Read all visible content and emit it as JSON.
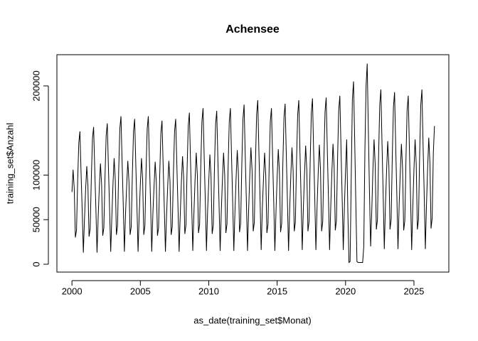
{
  "chart_data": {
    "type": "line",
    "title": "Achensee",
    "x_label": "as_date(training_set$Monat)",
    "y_label": "training_set$Anzahl",
    "color": "#000000",
    "xlim": [
      1998.9,
      2027.55
    ],
    "ylim": [
      -8800,
      235000
    ],
    "xticks": [
      2000,
      2005,
      2010,
      2015,
      2020,
      2025
    ],
    "yticks": [
      0,
      50000,
      100000,
      200000
    ],
    "x": [
      2000,
      2000.083,
      2000.167,
      2000.25,
      2000.333,
      2000.417,
      2000.5,
      2000.583,
      2000.667,
      2000.75,
      2000.833,
      2000.917,
      2001,
      2001.083,
      2001.167,
      2001.25,
      2001.333,
      2001.417,
      2001.5,
      2001.583,
      2001.667,
      2001.75,
      2001.833,
      2001.917,
      2002,
      2002.083,
      2002.167,
      2002.25,
      2002.333,
      2002.417,
      2002.5,
      2002.583,
      2002.667,
      2002.75,
      2002.833,
      2002.917,
      2003,
      2003.083,
      2003.167,
      2003.25,
      2003.333,
      2003.417,
      2003.5,
      2003.583,
      2003.667,
      2003.75,
      2003.833,
      2003.917,
      2004,
      2004.083,
      2004.167,
      2004.25,
      2004.333,
      2004.417,
      2004.5,
      2004.583,
      2004.667,
      2004.75,
      2004.833,
      2004.917,
      2005,
      2005.083,
      2005.167,
      2005.25,
      2005.333,
      2005.417,
      2005.5,
      2005.583,
      2005.667,
      2005.75,
      2005.833,
      2005.917,
      2006,
      2006.083,
      2006.167,
      2006.25,
      2006.333,
      2006.417,
      2006.5,
      2006.583,
      2006.667,
      2006.75,
      2006.833,
      2006.917,
      2007,
      2007.083,
      2007.167,
      2007.25,
      2007.333,
      2007.417,
      2007.5,
      2007.583,
      2007.667,
      2007.75,
      2007.833,
      2007.917,
      2008,
      2008.083,
      2008.167,
      2008.25,
      2008.333,
      2008.417,
      2008.5,
      2008.583,
      2008.667,
      2008.75,
      2008.833,
      2008.917,
      2009,
      2009.083,
      2009.167,
      2009.25,
      2009.333,
      2009.417,
      2009.5,
      2009.583,
      2009.667,
      2009.75,
      2009.833,
      2009.917,
      2010,
      2010.083,
      2010.167,
      2010.25,
      2010.333,
      2010.417,
      2010.5,
      2010.583,
      2010.667,
      2010.75,
      2010.833,
      2010.917,
      2011,
      2011.083,
      2011.167,
      2011.25,
      2011.333,
      2011.417,
      2011.5,
      2011.583,
      2011.667,
      2011.75,
      2011.833,
      2011.917,
      2012,
      2012.083,
      2012.167,
      2012.25,
      2012.333,
      2012.417,
      2012.5,
      2012.583,
      2012.667,
      2012.75,
      2012.833,
      2012.917,
      2013,
      2013.083,
      2013.167,
      2013.25,
      2013.333,
      2013.417,
      2013.5,
      2013.583,
      2013.667,
      2013.75,
      2013.833,
      2013.917,
      2014,
      2014.083,
      2014.167,
      2014.25,
      2014.333,
      2014.417,
      2014.5,
      2014.583,
      2014.667,
      2014.75,
      2014.833,
      2014.917,
      2015,
      2015.083,
      2015.167,
      2015.25,
      2015.333,
      2015.417,
      2015.5,
      2015.583,
      2015.667,
      2015.75,
      2015.833,
      2015.917,
      2016,
      2016.083,
      2016.167,
      2016.25,
      2016.333,
      2016.417,
      2016.5,
      2016.583,
      2016.667,
      2016.75,
      2016.833,
      2016.917,
      2017,
      2017.083,
      2017.167,
      2017.25,
      2017.333,
      2017.417,
      2017.5,
      2017.583,
      2017.667,
      2017.75,
      2017.833,
      2017.917,
      2018,
      2018.083,
      2018.167,
      2018.25,
      2018.333,
      2018.417,
      2018.5,
      2018.583,
      2018.667,
      2018.75,
      2018.833,
      2018.917,
      2019,
      2019.083,
      2019.167,
      2019.25,
      2019.333,
      2019.417,
      2019.5,
      2019.583,
      2019.667,
      2019.75,
      2019.833,
      2019.917,
      2020,
      2020.083,
      2020.167,
      2020.25,
      2020.333,
      2020.417,
      2020.5,
      2020.583,
      2020.667,
      2020.75,
      2020.833,
      2020.917,
      2021,
      2021.083,
      2021.167,
      2021.25,
      2021.333,
      2021.417,
      2021.5,
      2021.583,
      2021.667,
      2021.75,
      2021.833,
      2021.917,
      2022,
      2022.083,
      2022.167,
      2022.25,
      2022.333,
      2022.417,
      2022.5,
      2022.583,
      2022.667,
      2022.75,
      2022.833,
      2022.917,
      2023,
      2023.083,
      2023.167,
      2023.25,
      2023.333,
      2023.417,
      2023.5,
      2023.583,
      2023.667,
      2023.75,
      2023.833,
      2023.917,
      2024,
      2024.083,
      2024.167,
      2024.25,
      2024.333,
      2024.417,
      2024.5,
      2024.583,
      2024.667,
      2024.75,
      2024.833,
      2024.917,
      2025,
      2025.083,
      2025.167,
      2025.25,
      2025.333,
      2025.417,
      2025.5,
      2025.583,
      2025.667,
      2025.75,
      2025.833,
      2025.917,
      2026,
      2026.083,
      2026.167,
      2026.25,
      2026.333,
      2026.417,
      2026.5
    ],
    "values": [
      81000,
      106000,
      85000,
      30000,
      38000,
      94000,
      136000,
      149000,
      102000,
      60000,
      13000,
      51000,
      84000,
      110000,
      88000,
      31000,
      40000,
      97000,
      141000,
      154000,
      106000,
      62000,
      13000,
      53000,
      86000,
      113000,
      90000,
      32000,
      41000,
      99000,
      144000,
      158000,
      108000,
      63000,
      14000,
      54000,
      90000,
      119000,
      95000,
      33000,
      43000,
      105000,
      152000,
      166000,
      114000,
      67000,
      14000,
      57000,
      88000,
      116000,
      93000,
      33000,
      42000,
      102000,
      149000,
      163000,
      112000,
      65000,
      14000,
      56000,
      90000,
      119000,
      95000,
      33000,
      43000,
      105000,
      152000,
      166000,
      114000,
      67000,
      14000,
      57000,
      87000,
      115000,
      92000,
      32000,
      41000,
      101000,
      147000,
      161000,
      110000,
      64000,
      14000,
      55000,
      88000,
      116000,
      93000,
      33000,
      42000,
      102000,
      149000,
      163000,
      112000,
      65000,
      14000,
      56000,
      92000,
      121000,
      97000,
      34000,
      44000,
      107000,
      155000,
      170000,
      116000,
      68000,
      15000,
      58000,
      95000,
      125000,
      100000,
      35000,
      45000,
      110000,
      160000,
      175000,
      120000,
      70000,
      15000,
      60000,
      93000,
      123000,
      98000,
      34000,
      44000,
      108000,
      157000,
      172000,
      118000,
      69000,
      15000,
      59000,
      95000,
      125000,
      100000,
      35000,
      45000,
      110000,
      160000,
      175000,
      120000,
      70000,
      15000,
      60000,
      97000,
      128000,
      102000,
      36000,
      46000,
      112000,
      163000,
      179000,
      122000,
      71000,
      15000,
      61000,
      100000,
      131000,
      105000,
      37000,
      47000,
      116000,
      168000,
      184000,
      126000,
      74000,
      16000,
      63000,
      95000,
      125000,
      100000,
      35000,
      45000,
      110000,
      160000,
      175000,
      120000,
      70000,
      15000,
      60000,
      98000,
      129000,
      103000,
      36000,
      46000,
      113000,
      165000,
      180000,
      124000,
      72000,
      15000,
      62000,
      100000,
      131000,
      105000,
      37000,
      47000,
      116000,
      168000,
      184000,
      126000,
      74000,
      16000,
      63000,
      101000,
      133000,
      106000,
      37000,
      48000,
      117000,
      170000,
      186000,
      127000,
      74000,
      16000,
      64000,
      102000,
      134000,
      107000,
      37000,
      48000,
      118000,
      171000,
      187000,
      128000,
      75000,
      16000,
      64000,
      103000,
      135000,
      108000,
      38000,
      49000,
      119000,
      173000,
      189000,
      130000,
      76000,
      16000,
      65000,
      105000,
      140000,
      60000,
      2000,
      3000,
      100000,
      185000,
      205000,
      140000,
      70000,
      3000,
      2000,
      2000,
      2000,
      2000,
      2000,
      20000,
      130000,
      200000,
      225000,
      150000,
      80000,
      20000,
      60000,
      106000,
      140000,
      112000,
      39000,
      50000,
      123000,
      179000,
      196000,
      134000,
      78000,
      17000,
      67000,
      105000,
      138000,
      110000,
      39000,
      50000,
      121000,
      176000,
      193000,
      132000,
      77000,
      17000,
      66000,
      103000,
      135000,
      108000,
      38000,
      49000,
      119000,
      173000,
      189000,
      130000,
      76000,
      16000,
      65000,
      106000,
      140000,
      112000,
      39000,
      50000,
      123000,
      179000,
      196000,
      134000,
      78000,
      17000,
      67000,
      108000,
      142000,
      114000,
      40000,
      52000,
      125000,
      155000
    ]
  }
}
